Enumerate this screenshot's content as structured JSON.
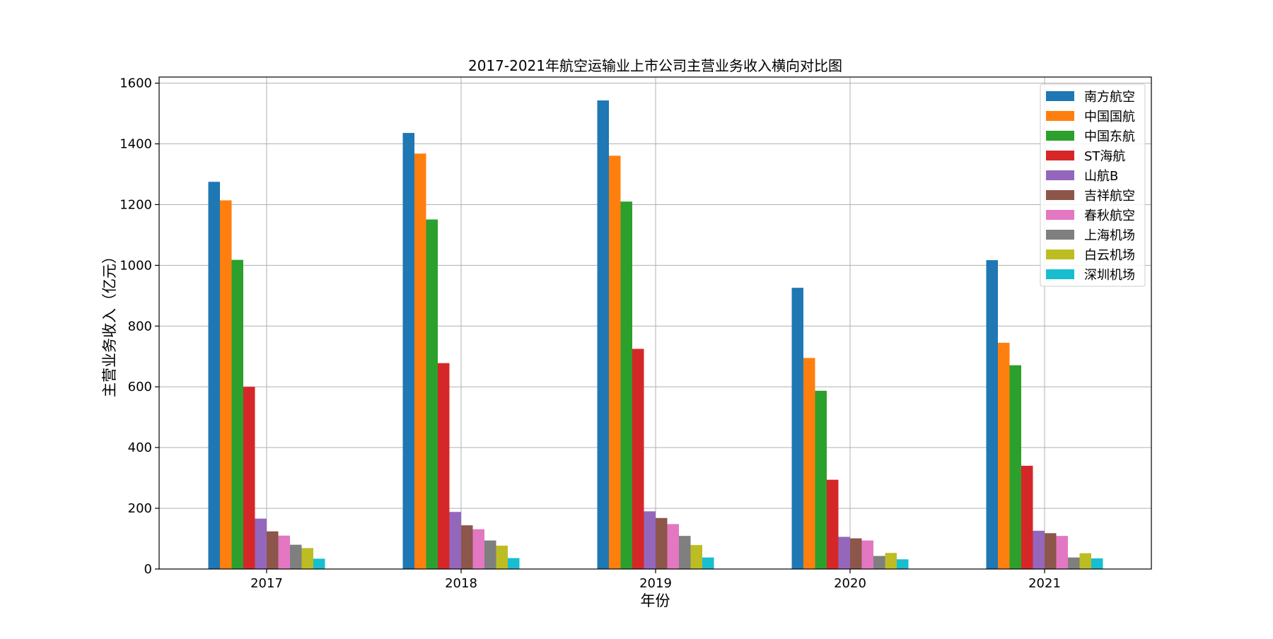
{
  "chart_data": {
    "type": "bar",
    "title": "2017-2021年航空运输业上市公司主营业务收入横向对比图",
    "xlabel": "年份",
    "ylabel": "主营业务收入（亿元）",
    "categories": [
      "2017",
      "2018",
      "2019",
      "2020",
      "2021"
    ],
    "ylim": [
      0,
      1620
    ],
    "yticks": [
      0,
      200,
      400,
      600,
      800,
      1000,
      1200,
      1400,
      1600
    ],
    "grid": true,
    "legend_position": "top-right",
    "series": [
      {
        "name": "南方航空",
        "color": "#1f77b4",
        "values": [
          1275,
          1436,
          1543,
          926,
          1017
        ]
      },
      {
        "name": "中国国航",
        "color": "#ff7f0e",
        "values": [
          1214,
          1368,
          1361,
          695,
          745
        ]
      },
      {
        "name": "中国东航",
        "color": "#2ca02c",
        "values": [
          1018,
          1151,
          1210,
          587,
          671
        ]
      },
      {
        "name": "ST海航",
        "color": "#d62728",
        "values": [
          600,
          678,
          725,
          294,
          340
        ]
      },
      {
        "name": "山航B",
        "color": "#9467bd",
        "values": [
          166,
          188,
          190,
          106,
          126
        ]
      },
      {
        "name": "吉祥航空",
        "color": "#8c564b",
        "values": [
          124,
          144,
          168,
          101,
          118
        ]
      },
      {
        "name": "春秋航空",
        "color": "#e377c2",
        "values": [
          110,
          131,
          148,
          94,
          109
        ]
      },
      {
        "name": "上海机场",
        "color": "#7f7f7f",
        "values": [
          80,
          94,
          109,
          43,
          38
        ]
      },
      {
        "name": "白云机场",
        "color": "#bcbd22",
        "values": [
          69,
          77,
          79,
          53,
          52
        ]
      },
      {
        "name": "深圳机场",
        "color": "#17becf",
        "values": [
          34,
          36,
          38,
          32,
          35
        ]
      }
    ]
  }
}
